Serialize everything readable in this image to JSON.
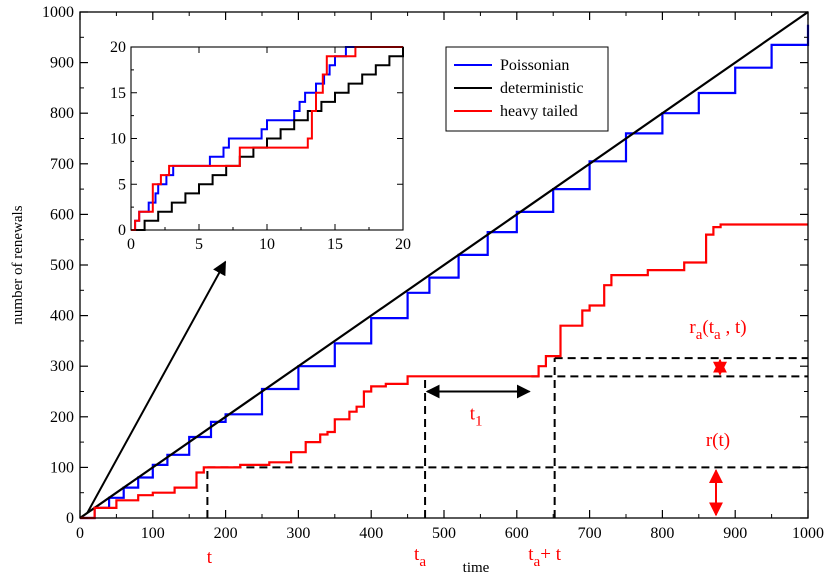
{
  "chart_data": [
    {
      "type": "line",
      "xlabel": "time",
      "ylabel": "number of renewals",
      "xlim": [
        0,
        1000
      ],
      "ylim": [
        0,
        1000
      ],
      "x_ticks": [
        0,
        100,
        200,
        300,
        400,
        500,
        600,
        700,
        800,
        900,
        1000
      ],
      "y_ticks": [
        0,
        100,
        200,
        300,
        400,
        500,
        600,
        700,
        800,
        900,
        1000
      ],
      "x_tick_labels": [
        "0",
        "100",
        "200",
        "300",
        "400",
        "500",
        "600",
        "700",
        "800",
        "900",
        "1000"
      ],
      "y_tick_labels": [
        "0",
        "100",
        "200",
        "300",
        "400",
        "500",
        "600",
        "700",
        "800",
        "900",
        "1000"
      ],
      "grid": false,
      "legend_position": "top-right",
      "series": [
        {
          "name": "Poissonian",
          "color": "#0000ff",
          "x": [
            0,
            20,
            40,
            60,
            80,
            100,
            120,
            150,
            180,
            200,
            250,
            300,
            350,
            400,
            450,
            480,
            520,
            560,
            600,
            650,
            700,
            750,
            800,
            850,
            900,
            950,
            1000
          ],
          "y": [
            0,
            20,
            40,
            60,
            80,
            105,
            125,
            160,
            190,
            205,
            255,
            300,
            345,
            395,
            445,
            475,
            520,
            565,
            605,
            650,
            705,
            760,
            800,
            840,
            890,
            935,
            975
          ]
        },
        {
          "name": "deterministic",
          "color": "#000000",
          "x": [
            0,
            1000
          ],
          "y": [
            0,
            1000
          ]
        },
        {
          "name": "heavy tailed",
          "color": "#ff0000",
          "x": [
            0,
            20,
            50,
            80,
            100,
            130,
            160,
            170,
            205,
            220,
            260,
            290,
            300,
            310,
            330,
            340,
            350,
            370,
            380,
            390,
            400,
            420,
            450,
            620,
            630,
            640,
            660,
            690,
            700,
            720,
            730,
            770,
            780,
            800,
            830,
            860,
            870,
            880,
            1000
          ],
          "y": [
            0,
            20,
            35,
            45,
            50,
            60,
            90,
            100,
            100,
            105,
            110,
            130,
            130,
            150,
            165,
            170,
            195,
            210,
            220,
            250,
            260,
            265,
            280,
            280,
            300,
            320,
            380,
            410,
            420,
            460,
            480,
            480,
            490,
            490,
            505,
            560,
            575,
            580,
            580
          ]
        }
      ],
      "annotations": [
        {
          "id": "t_lower",
          "text": "t",
          "x_pos": 175
        },
        {
          "id": "t_a",
          "text": "t",
          "sub": "a",
          "x_pos": 474
        },
        {
          "id": "t_a_plus_t",
          "text": "t",
          "sub": "a",
          "suffix": "+ t",
          "x_pos": 652
        },
        {
          "id": "t_1",
          "text": "t",
          "sub": "1",
          "x_range": [
            474,
            620
          ],
          "y_pos": 250
        },
        {
          "id": "r_t",
          "text": "r(t)",
          "y_range": [
            0,
            100
          ]
        },
        {
          "id": "r_a",
          "text": "r",
          "sub": "a",
          "args_a": "(t",
          "args_sub": "a",
          "args_b": ", t)",
          "y_range": [
            280,
            316
          ]
        }
      ],
      "guides": {
        "vertical": [
          {
            "x": 175,
            "y_from": 0,
            "y_to": 100
          },
          {
            "x": 474,
            "y_from": 0,
            "y_to": 280
          },
          {
            "x": 652,
            "y_from": 0,
            "y_to": 316
          }
        ],
        "horizontal": [
          {
            "y": 100,
            "x_from": 175,
            "x_to": 1000
          },
          {
            "y": 280,
            "x_from": 620,
            "x_to": 1000
          },
          {
            "y": 316,
            "x_from": 652,
            "x_to": 1000
          }
        ]
      },
      "inset_arrow": {
        "from": [
          10,
          10
        ],
        "to": [
          260,
          530
        ]
      }
    },
    {
      "type": "line",
      "role": "inset",
      "xlim": [
        0,
        20
      ],
      "ylim": [
        0,
        20
      ],
      "x_ticks": [
        0,
        5,
        10,
        15,
        20
      ],
      "y_ticks": [
        0,
        5,
        10,
        15,
        20
      ],
      "x_tick_labels": [
        "0",
        "5",
        "10",
        "15",
        "20"
      ],
      "y_tick_labels": [
        "0",
        "5",
        "10",
        "15",
        "20"
      ],
      "series": [
        {
          "name": "Poissonian",
          "color": "#0000ff",
          "x": [
            0,
            0.3,
            0.6,
            1.3,
            1.8,
            2.0,
            2.6,
            3.1,
            3.5,
            5.8,
            6.8,
            7.2,
            8.2,
            9.6,
            10.0,
            10.6,
            11.4,
            12.0,
            12.4,
            12.8,
            13.0,
            13.3,
            13.6,
            13.9,
            14.0,
            14.2,
            14.6,
            15.0,
            15.4,
            15.8,
            16.0,
            16.2,
            16.6,
            17.0,
            20
          ],
          "y": [
            0,
            1,
            2,
            3,
            4,
            5,
            6,
            7,
            7,
            8,
            9,
            10,
            10,
            11,
            12,
            12,
            12,
            13,
            14,
            15,
            15,
            15,
            16,
            16,
            16,
            17,
            18,
            19,
            19,
            20,
            20,
            20,
            20,
            20,
            20
          ]
        },
        {
          "name": "deterministic",
          "color": "#000000",
          "x": [
            0,
            1,
            2,
            3,
            4,
            5,
            6,
            7,
            8,
            9,
            10,
            11,
            12,
            13,
            14,
            15,
            16,
            17,
            18,
            19,
            20
          ],
          "y": [
            0,
            1,
            2,
            3,
            4,
            5,
            6,
            7,
            8,
            9,
            10,
            11,
            12,
            13,
            14,
            15,
            16,
            17,
            18,
            19,
            20
          ]
        },
        {
          "name": "heavy tailed",
          "color": "#ff0000",
          "x": [
            0,
            0.3,
            0.6,
            1.6,
            2.2,
            2.8,
            7.0,
            8.0,
            13.0,
            13.3,
            13.6,
            14.1,
            14.4,
            16.5,
            20
          ],
          "y": [
            0,
            1,
            2,
            5,
            6,
            7,
            7,
            9,
            10,
            13,
            15,
            17,
            19,
            20,
            20
          ]
        }
      ]
    }
  ]
}
